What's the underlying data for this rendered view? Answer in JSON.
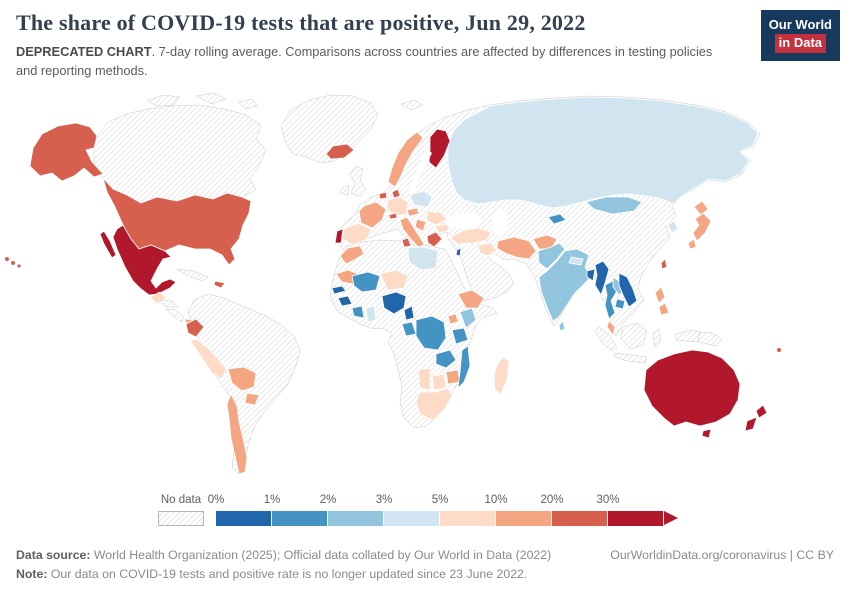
{
  "header": {
    "title": "The share of COVID-19 tests that are positive, Jun 29, 2022",
    "logo": {
      "line1": "Our World",
      "line2": "in Data"
    },
    "subtitle_bold": "DEPRECATED CHART",
    "subtitle_rest": ". 7-day rolling average. Comparisons across countries are affected by differences in testing policies and reporting methods."
  },
  "brand": {
    "logo_bg": "#16395c",
    "logo_accent": "#c5303e"
  },
  "legend": {
    "no_data_label": "No data"
  },
  "footer": {
    "source_label": "Data source:",
    "source_text": " World Health Organization (2025); Official data collated by Our World in Data (2022)",
    "link_text": "OurWorldinData.org/coronavirus | CC BY",
    "note_label": "Note:",
    "note_text": " Our data on COVID-19 tests and positive rate is no longer updated since 23 June 2022."
  },
  "chart_data": {
    "type": "heatmap",
    "subtype": "choropleth-world-map",
    "title": "The share of COVID-19 tests that are positive",
    "date": "Jun 29, 2022",
    "unit": "%",
    "legend_position": "bottom",
    "no_data": {
      "label": "No data",
      "pattern": "diagonal-hatch"
    },
    "bins": [
      {
        "label": "0%",
        "range": "0-1%",
        "color": "#2166ac"
      },
      {
        "label": "1%",
        "range": "1-2%",
        "color": "#4393c3"
      },
      {
        "label": "2%",
        "range": "2-3%",
        "color": "#92c5de"
      },
      {
        "label": "3%",
        "range": "3-5%",
        "color": "#d1e5f0"
      },
      {
        "label": "5%",
        "range": "5-10%",
        "color": "#fddbc7"
      },
      {
        "label": "10%",
        "range": "10-20%",
        "color": "#f4a582"
      },
      {
        "label": "20%",
        "range": "20-30%",
        "color": "#d6604d"
      },
      {
        "label": "30%",
        "range": ">30%",
        "color": "#b2182b"
      }
    ],
    "countries": {
      "United States": "20-30%",
      "Canada": "No data",
      "Greenland": "No data",
      "Mexico": ">30%",
      "Guatemala": "5-10%",
      "Honduras": "No data",
      "Nicaragua": "No data",
      "Panama": "10-20%",
      "Cuba": "No data",
      "Dominican Republic": "20-30%",
      "Colombia": "No data",
      "Venezuela": "No data",
      "Brazil": "No data",
      "Argentina": "No data",
      "Ecuador": "20-30%",
      "Peru": "5-10%",
      "Bolivia": "10-20%",
      "Paraguay": "10-20%",
      "Chile": "10-20%",
      "Iceland": "20-30%",
      "United Kingdom": "No data",
      "Ireland": "No data",
      "Norway": "10-20%",
      "Sweden": "No data",
      "Finland": ">30%",
      "Denmark": "20-30%",
      "Netherlands": "20-30%",
      "Germany": "5-10%",
      "France": "10-20%",
      "Switzerland": "20-30%",
      "Austria": "10-20%",
      "Poland": "3-5%",
      "Spain": "5-10%",
      "Portugal": ">30%",
      "Italy": "10-20%",
      "Serbia": "10-20%",
      "Romania": "5-10%",
      "Bulgaria": "5-10%",
      "Greece": "20-30%",
      "Ukraine": "No data",
      "Belarus": "No data",
      "Russia": "3-5%",
      "Kazakhstan": "No data",
      "Turkey": "5-10%",
      "Israel": "0-1%",
      "Iraq": "5-10%",
      "Saudi Arabia": "No data",
      "Iran": "10-20%",
      "Afghanistan": "10-20%",
      "Pakistan": "2-3%",
      "Kyrgyzstan": "1-2%",
      "India": "2-3%",
      "Nepal": "3-5%",
      "Bangladesh": "0-1%",
      "Myanmar": "0-1%",
      "Sri Lanka": "2-3%",
      "Thailand": "1-2%",
      "Laos": "2-3%",
      "Vietnam": "0-1%",
      "Cambodia": "1-2%",
      "Malaysia": "10-20%",
      "China": "No data",
      "Mongolia": "2-3%",
      "North Korea": "No data",
      "South Korea": "3-5%",
      "Japan": "10-20%",
      "Taiwan": "20-30%",
      "Philippines": "10-20%",
      "Indonesia": "No data",
      "Papua New Guinea": "No data",
      "Morocco": "10-20%",
      "Algeria": "No data",
      "Tunisia": "20-30%",
      "Libya": "3-5%",
      "Egypt": "No data",
      "Sudan": "No data",
      "Chad": "No data",
      "Somalia": "No data",
      "Mauritania": "10-20%",
      "Mali": "1-2%",
      "Senegal": "0-1%",
      "Guinea": "0-1%",
      "Cote d'Ivoire": "1-2%",
      "Ghana": "3-5%",
      "Niger": "5-10%",
      "Nigeria": "0-1%",
      "Cameroon": "0-1%",
      "Gabon": "1-2%",
      "Democratic Republic of Congo": "1-2%",
      "Uganda": "10-20%",
      "Kenya": "2-3%",
      "Ethiopia": "10-20%",
      "Tanzania": "1-2%",
      "Angola": "No data",
      "Zambia": "1-2%",
      "Zimbabwe": "10-20%",
      "Mozambique": "1-2%",
      "Botswana": "5-10%",
      "Namibia": "5-10%",
      "South Africa": "5-10%",
      "Madagascar": "5-10%",
      "Australia": ">30%",
      "New Zealand": ">30%",
      "Fiji": "20-30%"
    }
  }
}
